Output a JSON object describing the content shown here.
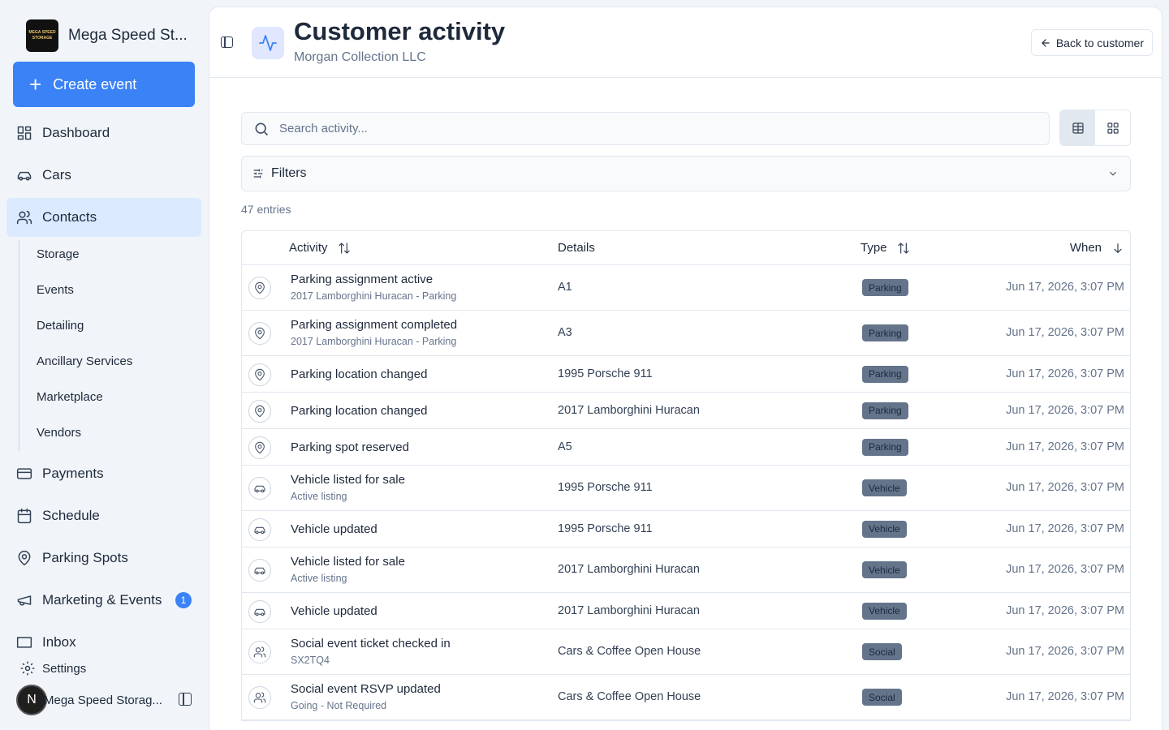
{
  "brand": {
    "name": "Mega Speed St...",
    "logo_text": "MEGA SPEED STORAGE"
  },
  "sidebar": {
    "create_label": "Create event",
    "nav": [
      {
        "label": "Dashboard",
        "icon": "dashboard-icon"
      },
      {
        "label": "Cars",
        "icon": "car-icon"
      },
      {
        "label": "Contacts",
        "icon": "users-icon",
        "active": true
      },
      {
        "label": "Payments",
        "icon": "credit-card-icon"
      },
      {
        "label": "Schedule",
        "icon": "calendar-icon"
      },
      {
        "label": "Parking Spots",
        "icon": "map-pin-icon"
      },
      {
        "label": "Marketing & Events",
        "icon": "megaphone-icon",
        "badge": "1"
      },
      {
        "label": "Inbox",
        "icon": "inbox-icon"
      }
    ],
    "sub_items": [
      "Storage",
      "Events",
      "Detailing",
      "Ancillary Services",
      "Marketplace",
      "Vendors"
    ],
    "settings_label": "Settings",
    "user": {
      "initial": "N",
      "name": "Mega Speed Storag..."
    }
  },
  "header": {
    "title": "Customer activity",
    "subtitle": "Morgan Collection LLC",
    "back_label": "Back to customer"
  },
  "search": {
    "placeholder": "Search activity...",
    "value": ""
  },
  "filters_label": "Filters",
  "entries_label": "47 entries",
  "table": {
    "columns": {
      "activity": "Activity",
      "details": "Details",
      "type": "Type",
      "when": "When"
    },
    "rows": [
      {
        "icon": "map-pin-icon",
        "title": "Parking assignment active",
        "sub": "2017 Lamborghini Huracan - Parking",
        "details": "A1",
        "type": "Parking",
        "when": "Jun 17, 2026, 3:07 PM"
      },
      {
        "icon": "map-pin-icon",
        "title": "Parking assignment completed",
        "sub": "2017 Lamborghini Huracan - Parking",
        "details": "A3",
        "type": "Parking",
        "when": "Jun 17, 2026, 3:07 PM"
      },
      {
        "icon": "map-pin-icon",
        "title": "Parking location changed",
        "sub": "",
        "details": "1995 Porsche 911",
        "type": "Parking",
        "when": "Jun 17, 2026, 3:07 PM"
      },
      {
        "icon": "map-pin-icon",
        "title": "Parking location changed",
        "sub": "",
        "details": "2017 Lamborghini Huracan",
        "type": "Parking",
        "when": "Jun 17, 2026, 3:07 PM"
      },
      {
        "icon": "map-pin-icon",
        "title": "Parking spot reserved",
        "sub": "",
        "details": "A5",
        "type": "Parking",
        "when": "Jun 17, 2026, 3:07 PM"
      },
      {
        "icon": "car-icon",
        "title": "Vehicle listed for sale",
        "sub": "Active listing",
        "details": "1995 Porsche 911",
        "type": "Vehicle",
        "when": "Jun 17, 2026, 3:07 PM"
      },
      {
        "icon": "car-icon",
        "title": "Vehicle updated",
        "sub": "",
        "details": "1995 Porsche 911",
        "type": "Vehicle",
        "when": "Jun 17, 2026, 3:07 PM"
      },
      {
        "icon": "car-icon",
        "title": "Vehicle listed for sale",
        "sub": "Active listing",
        "details": "2017 Lamborghini Huracan",
        "type": "Vehicle",
        "when": "Jun 17, 2026, 3:07 PM"
      },
      {
        "icon": "car-icon",
        "title": "Vehicle updated",
        "sub": "",
        "details": "2017 Lamborghini Huracan",
        "type": "Vehicle",
        "when": "Jun 17, 2026, 3:07 PM"
      },
      {
        "icon": "users-icon",
        "title": "Social event ticket checked in",
        "sub": "SX2TQ4",
        "details": "Cars & Coffee Open House",
        "type": "Social",
        "when": "Jun 17, 2026, 3:07 PM"
      },
      {
        "icon": "users-icon",
        "title": "Social event RSVP updated",
        "sub": "Going - Not Required",
        "details": "Cars & Coffee Open House",
        "type": "Social",
        "when": "Jun 17, 2026, 3:07 PM"
      }
    ]
  },
  "colors": {
    "accent": "#3b82f6",
    "active_nav": "#dbeafe",
    "badge_bg": "#64748b"
  }
}
